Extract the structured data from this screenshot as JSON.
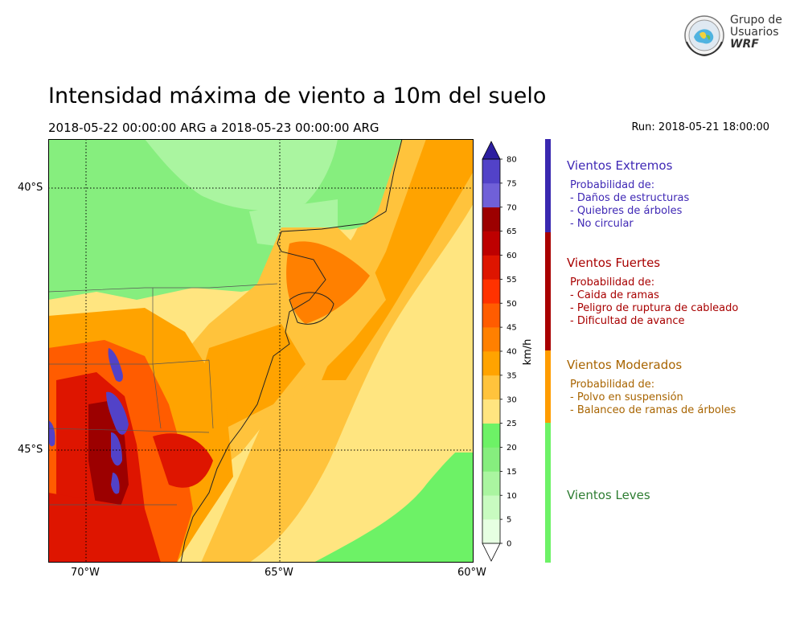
{
  "title": "Intensidad máxima de viento a 10m del suelo",
  "period": "2018-05-22 00:00:00 ARG  a  2018-05-23 00:00:00 ARG",
  "run": "Run: 2018-05-21 18:00:00",
  "logo": {
    "line1": "Grupo de",
    "line2": "Usuarios",
    "line3": "WRF"
  },
  "map": {
    "lat_labels": [
      "40°S",
      "45°S"
    ],
    "lon_labels": [
      "70°W",
      "65°W",
      "60°W"
    ]
  },
  "colorbar": {
    "unit": "km/h",
    "ticks": [
      "0",
      "5",
      "10",
      "15",
      "20",
      "25",
      "30",
      "35",
      "40",
      "45",
      "50",
      "55",
      "60",
      "65",
      "70",
      "75",
      "80"
    ],
    "colors": [
      "#ffffff",
      "#e6ffe2",
      "#c8fbc0",
      "#aaf5a0",
      "#86ee7e",
      "#6df266",
      "#ffe580",
      "#ffc33c",
      "#ffa300",
      "#ff8000",
      "#ff5c00",
      "#ff3200",
      "#de1500",
      "#bd0000",
      "#9c0000",
      "#7060d8",
      "#5242c8",
      "#3a28b4",
      "#2c1ea0"
    ]
  },
  "categories": [
    {
      "title": "Vientos Extremos",
      "color": "#3f28b5",
      "band_color": "#3a28b0",
      "lines": [
        "Probabilidad de:",
        "- Daños de estructuras",
        "- Quiebres de árboles",
        "- No circular"
      ]
    },
    {
      "title": "Vientos Fuertes",
      "color": "#a80000",
      "band_color": "#a80000",
      "lines": [
        "Probabilidad de:",
        "- Caida de ramas",
        "- Peligro de ruptura de cableado",
        "- Dificultad de avance"
      ]
    },
    {
      "title": "Vientos Moderados",
      "color": "#a86400",
      "band_color": "#ff9c00",
      "lines": [
        "Probabilidad de:",
        "- Polvo en suspensión",
        "- Balanceo de ramas de árboles"
      ]
    },
    {
      "title": "Vientos Leves",
      "color": "#2e7d32",
      "band_color": "#6df266",
      "lines": []
    }
  ]
}
